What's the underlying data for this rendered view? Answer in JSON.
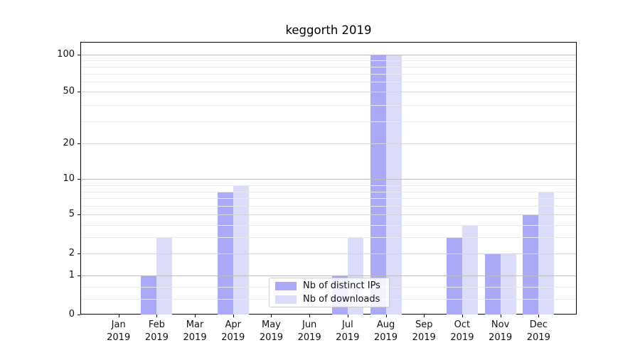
{
  "title": "keggorth 2019",
  "chart_data": {
    "type": "bar",
    "title": "keggorth 2019",
    "categories": [
      "Jan 2019",
      "Feb 2019",
      "Mar 2019",
      "Apr 2019",
      "May 2019",
      "Jun 2019",
      "Jul 2019",
      "Aug 2019",
      "Sep 2019",
      "Oct 2019",
      "Nov 2019",
      "Dec 2019"
    ],
    "series": [
      {
        "name": "Nb of distinct IPs",
        "color": "#a9a9f7",
        "values": [
          0,
          1,
          0,
          8,
          0,
          0,
          1,
          100,
          0,
          3,
          2,
          5
        ]
      },
      {
        "name": "Nb of downloads",
        "color": "#dbdbfa",
        "values": [
          0,
          3,
          0,
          9,
          0,
          0,
          3,
          100,
          0,
          4,
          2,
          8
        ]
      }
    ],
    "yaxis": {
      "scale": "symlog-like",
      "ylim": [
        0,
        100
      ],
      "major_ticks": [
        0,
        1,
        2,
        5,
        10,
        20,
        50,
        100
      ],
      "minor_ticks": [
        0.4,
        0.7,
        3,
        4,
        6,
        7,
        8,
        9,
        30,
        40,
        60,
        70,
        80,
        90
      ],
      "anchor_fractions": [
        [
          0,
          1.0
        ],
        [
          1,
          0.856
        ],
        [
          2,
          0.7768
        ],
        [
          3,
          0.7169
        ],
        [
          4,
          0.6719
        ],
        [
          5,
          0.6341
        ],
        [
          6,
          0.6003
        ],
        [
          7,
          0.5742
        ],
        [
          8,
          0.5495
        ],
        [
          9,
          0.5252
        ],
        [
          10,
          0.5026
        ],
        [
          20,
          0.3732
        ],
        [
          30,
          0.2917
        ],
        [
          40,
          0.2318
        ],
        [
          50,
          0.1831
        ],
        [
          60,
          0.1469
        ],
        [
          70,
          0.1164
        ],
        [
          80,
          0.0901
        ],
        [
          90,
          0.0669
        ],
        [
          100,
          0.0461
        ]
      ]
    },
    "grid": true,
    "legend_position": "lower center"
  },
  "colors": {
    "bar_distinct_ips": "#a9a9f7",
    "bar_downloads": "#dbdbfa",
    "grid_decade": "#bbbbbb",
    "grid_major": "#d6d6d6",
    "grid_minor": "#eaeaea",
    "spine": "#000000",
    "legend_border": "#cccccc"
  }
}
